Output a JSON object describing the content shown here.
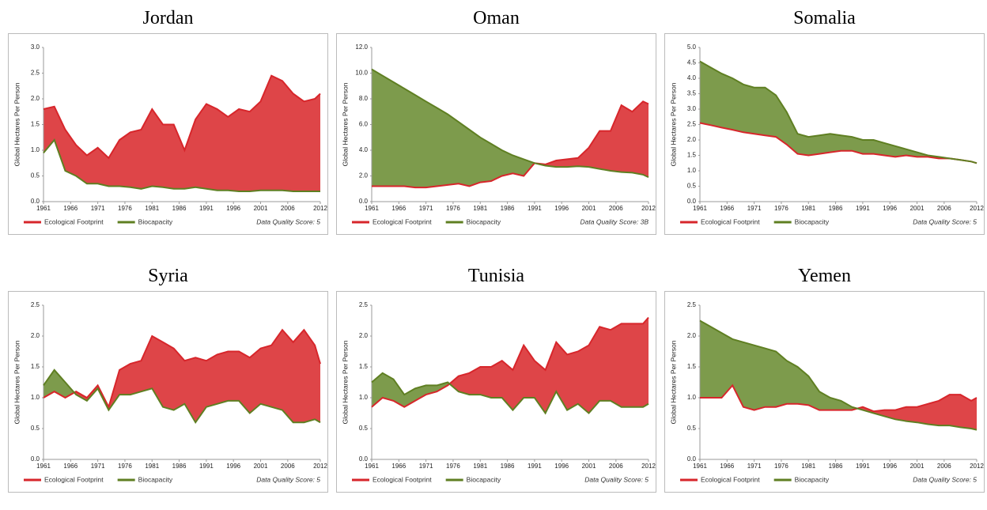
{
  "chart_data": [
    {
      "type": "area",
      "title": "Jordan",
      "ylabel": "Global Hectares Per Person",
      "note": "Data Quality Score: 5",
      "x": [
        1961,
        1963,
        1965,
        1967,
        1969,
        1971,
        1973,
        1975,
        1977,
        1979,
        1981,
        1983,
        1985,
        1987,
        1989,
        1991,
        1993,
        1995,
        1997,
        1999,
        2001,
        2003,
        2005,
        2007,
        2009,
        2011,
        2012
      ],
      "xlim": [
        1961,
        2012
      ],
      "xticks": [
        1961,
        1966,
        1971,
        1976,
        1981,
        1986,
        1991,
        1996,
        2001,
        2006,
        2012
      ],
      "ylim": [
        0,
        3
      ],
      "yticks": [
        {
          "value": 0,
          "label": "0.0"
        },
        {
          "value": 0.5,
          "label": "0.5"
        },
        {
          "value": 1,
          "label": "1.0"
        },
        {
          "value": 1.5,
          "label": "1.5"
        },
        {
          "value": 2,
          "label": "2.0"
        },
        {
          "value": 2.5,
          "label": "2.5"
        },
        {
          "value": 3,
          "label": "3.0"
        }
      ],
      "series": [
        {
          "name": "Ecological Footprint",
          "color": "#d7262b",
          "values": [
            1.8,
            1.85,
            1.4,
            1.1,
            0.9,
            1.05,
            0.85,
            1.2,
            1.35,
            1.4,
            1.8,
            1.5,
            1.5,
            1.0,
            1.6,
            1.9,
            1.8,
            1.65,
            1.8,
            1.75,
            1.95,
            2.45,
            2.35,
            2.1,
            1.95,
            2.0,
            2.1
          ]
        },
        {
          "name": "Biocapacity",
          "color": "#5f7f22",
          "values": [
            0.95,
            1.2,
            0.6,
            0.5,
            0.35,
            0.35,
            0.3,
            0.3,
            0.28,
            0.25,
            0.3,
            0.28,
            0.25,
            0.25,
            0.28,
            0.25,
            0.22,
            0.22,
            0.2,
            0.2,
            0.22,
            0.22,
            0.22,
            0.2,
            0.2,
            0.2,
            0.2
          ]
        }
      ]
    },
    {
      "type": "area",
      "title": "Oman",
      "ylabel": "Global Hectares Per Person",
      "note": "Data Quality Score: 3B",
      "x": [
        1961,
        1963,
        1965,
        1967,
        1969,
        1971,
        1973,
        1975,
        1977,
        1979,
        1981,
        1983,
        1985,
        1987,
        1989,
        1991,
        1993,
        1995,
        1997,
        1999,
        2001,
        2003,
        2005,
        2007,
        2009,
        2011,
        2012
      ],
      "xlim": [
        1961,
        2012
      ],
      "xticks": [
        1961,
        1966,
        1971,
        1976,
        1981,
        1986,
        1991,
        1996,
        2001,
        2006,
        2012
      ],
      "ylim": [
        0,
        12
      ],
      "yticks": [
        {
          "value": 0,
          "label": "0.0"
        },
        {
          "value": 2,
          "label": "2.0"
        },
        {
          "value": 4,
          "label": "4.0"
        },
        {
          "value": 6,
          "label": "6.0"
        },
        {
          "value": 8,
          "label": "8.0"
        },
        {
          "value": 10,
          "label": "10.0"
        },
        {
          "value": 12,
          "label": "12.0"
        }
      ],
      "series": [
        {
          "name": "Ecological Footprint",
          "color": "#d7262b",
          "values": [
            1.2,
            1.2,
            1.2,
            1.2,
            1.1,
            1.1,
            1.2,
            1.3,
            1.4,
            1.2,
            1.5,
            1.6,
            2.0,
            2.2,
            2.0,
            3.0,
            2.9,
            3.2,
            3.3,
            3.4,
            4.2,
            5.5,
            5.5,
            7.5,
            7.0,
            7.8,
            7.6
          ]
        },
        {
          "name": "Biocapacity",
          "color": "#5f7f22",
          "values": [
            10.3,
            9.8,
            9.3,
            8.8,
            8.3,
            7.8,
            7.3,
            6.8,
            6.2,
            5.6,
            5.0,
            4.5,
            4.0,
            3.6,
            3.3,
            3.0,
            2.8,
            2.7,
            2.7,
            2.75,
            2.7,
            2.55,
            2.4,
            2.3,
            2.25,
            2.1,
            1.9
          ]
        }
      ]
    },
    {
      "type": "area",
      "title": "Somalia",
      "ylabel": "Global Hectares Per Person",
      "note": "Data Quality Score: 5",
      "x": [
        1961,
        1963,
        1965,
        1967,
        1969,
        1971,
        1973,
        1975,
        1977,
        1979,
        1981,
        1983,
        1985,
        1987,
        1989,
        1991,
        1993,
        1995,
        1997,
        1999,
        2001,
        2003,
        2005,
        2007,
        2009,
        2011,
        2012
      ],
      "xlim": [
        1961,
        2012
      ],
      "xticks": [
        1961,
        1966,
        1971,
        1976,
        1981,
        1986,
        1991,
        1996,
        2001,
        2006,
        2012
      ],
      "ylim": [
        0,
        5
      ],
      "yticks": [
        {
          "value": 0,
          "label": "0.0"
        },
        {
          "value": 0.5,
          "label": "0.5"
        },
        {
          "value": 1,
          "label": "1.0"
        },
        {
          "value": 1.5,
          "label": "1.5"
        },
        {
          "value": 2,
          "label": "2.0"
        },
        {
          "value": 2.5,
          "label": "2.5"
        },
        {
          "value": 3,
          "label": "3.0"
        },
        {
          "value": 3.5,
          "label": "3.5"
        },
        {
          "value": 4,
          "label": "4.0"
        },
        {
          "value": 4.5,
          "label": "4.5"
        },
        {
          "value": 5,
          "label": "5.0"
        }
      ],
      "series": [
        {
          "name": "Ecological Footprint",
          "color": "#d7262b",
          "values": [
            2.55,
            2.48,
            2.4,
            2.33,
            2.25,
            2.2,
            2.15,
            2.1,
            1.85,
            1.55,
            1.5,
            1.55,
            1.6,
            1.65,
            1.65,
            1.55,
            1.55,
            1.5,
            1.45,
            1.5,
            1.45,
            1.45,
            1.4,
            1.4,
            1.35,
            1.3,
            1.25
          ]
        },
        {
          "name": "Biocapacity",
          "color": "#5f7f22",
          "values": [
            4.55,
            4.35,
            4.15,
            4.0,
            3.8,
            3.7,
            3.7,
            3.45,
            2.9,
            2.2,
            2.1,
            2.15,
            2.2,
            2.15,
            2.1,
            2.0,
            2.0,
            1.9,
            1.8,
            1.7,
            1.6,
            1.5,
            1.45,
            1.4,
            1.35,
            1.3,
            1.25
          ]
        }
      ]
    },
    {
      "type": "area",
      "title": "Syria",
      "ylabel": "Global Hectares Per Person",
      "note": "Data Quality Score: 5",
      "x": [
        1961,
        1963,
        1965,
        1967,
        1969,
        1971,
        1973,
        1975,
        1977,
        1979,
        1981,
        1983,
        1985,
        1987,
        1989,
        1991,
        1993,
        1995,
        1997,
        1999,
        2001,
        2003,
        2005,
        2007,
        2009,
        2011,
        2012
      ],
      "xlim": [
        1961,
        2012
      ],
      "xticks": [
        1961,
        1966,
        1971,
        1976,
        1981,
        1986,
        1991,
        1996,
        2001,
        2006,
        2012
      ],
      "ylim": [
        0,
        2.5
      ],
      "yticks": [
        {
          "value": 0,
          "label": "0.0"
        },
        {
          "value": 0.5,
          "label": "0.5"
        },
        {
          "value": 1,
          "label": "1.0"
        },
        {
          "value": 1.5,
          "label": "1.5"
        },
        {
          "value": 2,
          "label": "2.0"
        },
        {
          "value": 2.5,
          "label": "2.5"
        }
      ],
      "series": [
        {
          "name": "Ecological Footprint",
          "color": "#d7262b",
          "values": [
            1.0,
            1.1,
            1.0,
            1.1,
            1.0,
            1.2,
            0.85,
            1.45,
            1.55,
            1.6,
            2.0,
            1.9,
            1.8,
            1.6,
            1.65,
            1.6,
            1.7,
            1.75,
            1.75,
            1.65,
            1.8,
            1.85,
            2.1,
            1.9,
            2.1,
            1.85,
            1.55
          ]
        },
        {
          "name": "Biocapacity",
          "color": "#5f7f22",
          "values": [
            1.2,
            1.45,
            1.25,
            1.05,
            0.95,
            1.15,
            0.8,
            1.05,
            1.05,
            1.1,
            1.15,
            0.85,
            0.8,
            0.9,
            0.6,
            0.85,
            0.9,
            0.95,
            0.95,
            0.75,
            0.9,
            0.85,
            0.8,
            0.6,
            0.6,
            0.65,
            0.6
          ]
        }
      ]
    },
    {
      "type": "area",
      "title": "Tunisia",
      "ylabel": "Global Hectares Per Person",
      "note": "Data Quality Score: 5",
      "x": [
        1961,
        1963,
        1965,
        1967,
        1969,
        1971,
        1973,
        1975,
        1977,
        1979,
        1981,
        1983,
        1985,
        1987,
        1989,
        1991,
        1993,
        1995,
        1997,
        1999,
        2001,
        2003,
        2005,
        2007,
        2009,
        2011,
        2012
      ],
      "xlim": [
        1961,
        2012
      ],
      "xticks": [
        1961,
        1966,
        1971,
        1976,
        1981,
        1986,
        1991,
        1996,
        2001,
        2006,
        2012
      ],
      "ylim": [
        0,
        2.5
      ],
      "yticks": [
        {
          "value": 0,
          "label": "0.0"
        },
        {
          "value": 0.5,
          "label": "0.5"
        },
        {
          "value": 1,
          "label": "1.0"
        },
        {
          "value": 1.5,
          "label": "1.5"
        },
        {
          "value": 2,
          "label": "2.0"
        },
        {
          "value": 2.5,
          "label": "2.5"
        }
      ],
      "series": [
        {
          "name": "Ecological Footprint",
          "color": "#d7262b",
          "values": [
            0.85,
            1.0,
            0.95,
            0.85,
            0.95,
            1.05,
            1.1,
            1.2,
            1.35,
            1.4,
            1.5,
            1.5,
            1.6,
            1.45,
            1.85,
            1.6,
            1.45,
            1.9,
            1.7,
            1.75,
            1.85,
            2.15,
            2.1,
            2.2,
            2.2,
            2.2,
            2.3
          ]
        },
        {
          "name": "Biocapacity",
          "color": "#5f7f22",
          "values": [
            1.25,
            1.4,
            1.3,
            1.05,
            1.15,
            1.2,
            1.2,
            1.25,
            1.1,
            1.05,
            1.05,
            1.0,
            1.0,
            0.8,
            1.0,
            1.0,
            0.75,
            1.1,
            0.8,
            0.9,
            0.75,
            0.95,
            0.95,
            0.85,
            0.85,
            0.85,
            0.9
          ]
        }
      ]
    },
    {
      "type": "area",
      "title": "Yemen",
      "ylabel": "Global Hectares Per Person",
      "note": "Data Quality Score: 5",
      "x": [
        1961,
        1963,
        1965,
        1967,
        1969,
        1971,
        1973,
        1975,
        1977,
        1979,
        1981,
        1983,
        1985,
        1987,
        1989,
        1991,
        1993,
        1995,
        1997,
        1999,
        2001,
        2003,
        2005,
        2007,
        2009,
        2011,
        2012
      ],
      "xlim": [
        1961,
        2012
      ],
      "xticks": [
        1961,
        1966,
        1971,
        1976,
        1981,
        1986,
        1991,
        1996,
        2001,
        2006,
        2012
      ],
      "ylim": [
        0,
        2.5
      ],
      "yticks": [
        {
          "value": 0,
          "label": "0.0"
        },
        {
          "value": 0.5,
          "label": "0.5"
        },
        {
          "value": 1,
          "label": "1.0"
        },
        {
          "value": 1.5,
          "label": "1.5"
        },
        {
          "value": 2,
          "label": "2.0"
        },
        {
          "value": 2.5,
          "label": "2.5"
        }
      ],
      "series": [
        {
          "name": "Ecological Footprint",
          "color": "#d7262b",
          "values": [
            1.0,
            1.0,
            1.0,
            1.2,
            0.85,
            0.8,
            0.85,
            0.85,
            0.9,
            0.9,
            0.88,
            0.8,
            0.8,
            0.8,
            0.8,
            0.85,
            0.78,
            0.8,
            0.8,
            0.85,
            0.85,
            0.9,
            0.95,
            1.05,
            1.05,
            0.95,
            1.0
          ]
        },
        {
          "name": "Biocapacity",
          "color": "#5f7f22",
          "values": [
            2.25,
            2.15,
            2.05,
            1.95,
            1.9,
            1.85,
            1.8,
            1.75,
            1.6,
            1.5,
            1.35,
            1.1,
            1.0,
            0.95,
            0.85,
            0.8,
            0.75,
            0.7,
            0.65,
            0.62,
            0.6,
            0.57,
            0.55,
            0.55,
            0.52,
            0.5,
            0.48
          ]
        }
      ]
    }
  ]
}
